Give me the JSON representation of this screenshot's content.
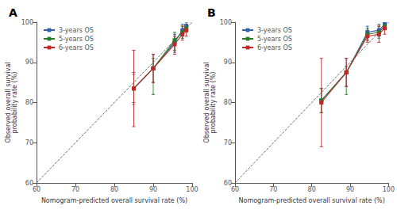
{
  "chart_data": [
    {
      "type": "line",
      "title": "A",
      "marker": "square",
      "line_style": "solid",
      "xlabel": "Nomogram-predicted overall survival rate (%)",
      "ylabel": "Observed overall survival\nprobability rate (%)",
      "xlim": [
        60,
        100
      ],
      "ylim": [
        60,
        100
      ],
      "xticks": [
        60,
        70,
        80,
        90,
        100
      ],
      "yticks": [
        60,
        70,
        80,
        90,
        100
      ],
      "grid": false,
      "legend": "upper left",
      "reference_line": {
        "x": [
          60,
          100
        ],
        "values": [
          60,
          100
        ],
        "color": "#444444",
        "line_style": "dashed"
      },
      "series": [
        {
          "name": "3-years OS",
          "color": "#3060a8",
          "x": [
            85.0,
            90.0,
            95.5,
            97.5,
            98.5
          ],
          "values": [
            83.5,
            88.5,
            95.0,
            98.0,
            99.0
          ],
          "yerr_low": [
            4.0,
            3.5,
            2.5,
            1.5,
            1.0
          ],
          "yerr_high": [
            4.0,
            3.5,
            2.0,
            1.5,
            1.0
          ]
        },
        {
          "name": "5-years OS",
          "color": "#2a7a2a",
          "x": [
            85.0,
            90.0,
            95.5,
            97.5,
            98.5
          ],
          "values": [
            83.5,
            88.5,
            95.5,
            97.5,
            98.5
          ],
          "yerr_low": [
            3.5,
            6.5,
            2.5,
            1.5,
            1.0
          ],
          "yerr_high": [
            3.5,
            2.5,
            2.0,
            1.5,
            1.0
          ]
        },
        {
          "name": "6-years OS",
          "color": "#c02828",
          "x": [
            85.0,
            90.0,
            95.5,
            97.5,
            98.5
          ],
          "values": [
            83.5,
            88.5,
            94.5,
            97.0,
            98.0
          ],
          "yerr_low": [
            9.5,
            3.5,
            2.5,
            1.5,
            1.5
          ],
          "yerr_high": [
            9.5,
            3.5,
            2.0,
            2.0,
            1.5
          ]
        }
      ]
    },
    {
      "type": "line",
      "title": "B",
      "marker": "square",
      "line_style": "solid",
      "xlabel": "Nomogram-predicted overall survival rate (%)",
      "ylabel": "Observed overall survival\nprobability rate (%)",
      "xlim": [
        60,
        100
      ],
      "ylim": [
        60,
        100
      ],
      "xticks": [
        60,
        70,
        80,
        90,
        100
      ],
      "yticks": [
        60,
        70,
        80,
        90,
        100
      ],
      "grid": false,
      "legend": "upper left",
      "reference_line": {
        "x": [
          60,
          100
        ],
        "values": [
          60,
          100
        ],
        "color": "#444444",
        "line_style": "dashed"
      },
      "series": [
        {
          "name": "3-years OS",
          "color": "#3060a8",
          "x": [
            82.5,
            89.0,
            94.5,
            97.5,
            99.0
          ],
          "values": [
            80.5,
            87.5,
            97.5,
            98.0,
            99.5
          ],
          "yerr_low": [
            3.0,
            3.5,
            2.0,
            1.5,
            0.8
          ],
          "yerr_high": [
            3.0,
            3.5,
            1.5,
            1.5,
            0.5
          ]
        },
        {
          "name": "5-years OS",
          "color": "#2a7a2a",
          "x": [
            82.5,
            89.0,
            94.5,
            97.5,
            99.0
          ],
          "values": [
            80.5,
            87.5,
            97.0,
            97.5,
            99.0
          ],
          "yerr_low": [
            3.0,
            5.5,
            1.5,
            1.5,
            0.8
          ],
          "yerr_high": [
            3.0,
            1.5,
            1.5,
            1.5,
            0.5
          ]
        },
        {
          "name": "6-years OS",
          "color": "#c02828",
          "x": [
            82.5,
            89.0,
            94.5,
            97.5,
            99.0
          ],
          "values": [
            80.0,
            87.5,
            96.5,
            97.0,
            98.5
          ],
          "yerr_low": [
            11.0,
            3.5,
            1.5,
            2.0,
            1.5
          ],
          "yerr_high": [
            11.0,
            3.5,
            1.5,
            2.0,
            1.5
          ]
        }
      ]
    }
  ]
}
